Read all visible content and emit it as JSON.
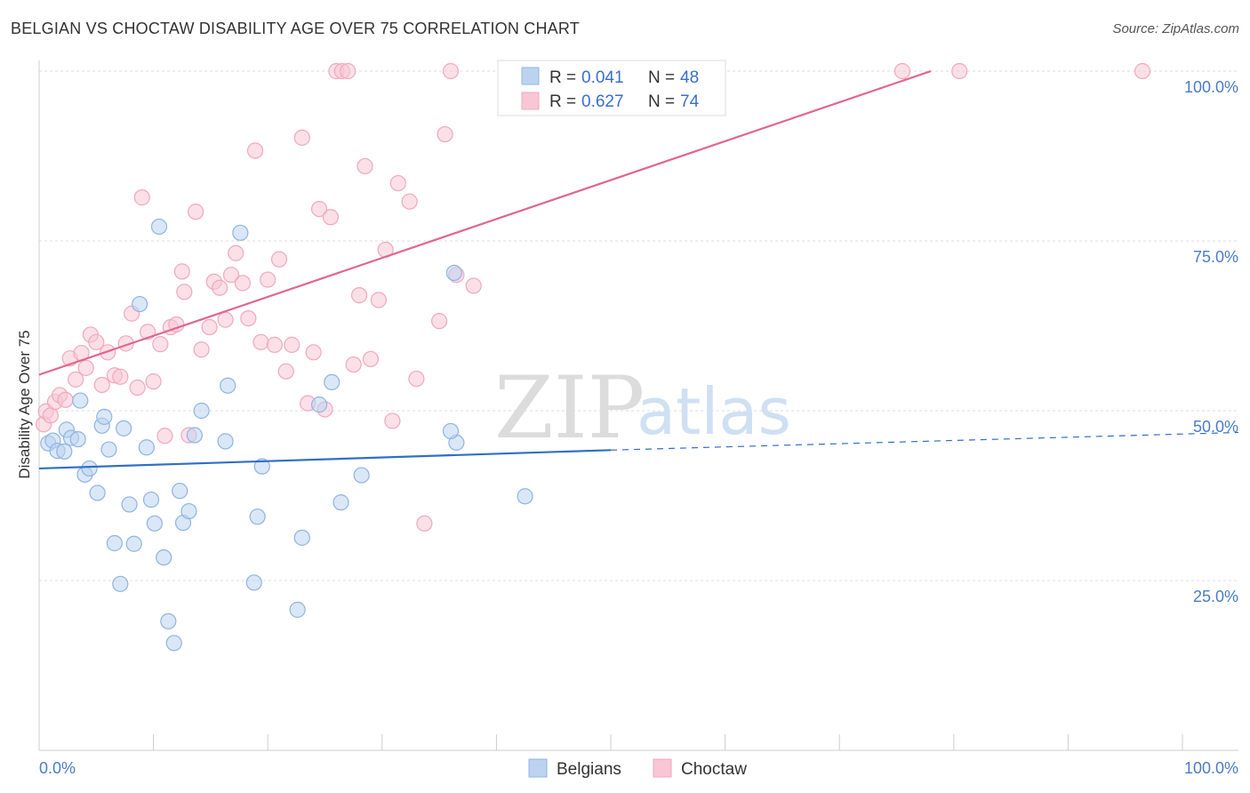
{
  "title": "BELGIAN VS CHOCTAW DISABILITY AGE OVER 75 CORRELATION CHART",
  "source": "Source: ZipAtlas.com",
  "watermark": {
    "zip": "ZIP",
    "atlas": "atlas"
  },
  "chart_data": {
    "type": "scatter",
    "title": "BELGIAN VS CHOCTAW DISABILITY AGE OVER 75 CORRELATION CHART",
    "xlabel": "",
    "ylabel": "Disability Age Over 75",
    "xlim": [
      0,
      100
    ],
    "ylim": [
      0,
      100
    ],
    "x_tick_labels": {
      "left": "0.0%",
      "right": "100.0%"
    },
    "y_ticks": [
      25,
      50,
      75,
      100
    ],
    "y_tick_labels": [
      "25.0%",
      "50.0%",
      "75.0%",
      "100.0%"
    ],
    "grid": true,
    "legend_position": "top-center",
    "colors": {
      "belgians": "#8fb4e3",
      "belgians_line": "#2f6fc8",
      "choctaw": "#f2a7bf",
      "choctaw_line": "#e0668f"
    },
    "stats": [
      {
        "r_label": "R =",
        "r_value": "0.041",
        "n_label": "N =",
        "n_value": "48"
      },
      {
        "r_label": "R =",
        "r_value": "0.627",
        "n_label": "N =",
        "n_value": "74"
      }
    ],
    "series": [
      {
        "name": "Belgians",
        "trend": {
          "x0": 0,
          "y0": 41.5,
          "x1": 50,
          "y1": 44.2,
          "dash_to_x": 100,
          "dash_to_y": 46.8
        },
        "points": [
          [
            0.8,
            45.2
          ],
          [
            1.2,
            45.6
          ],
          [
            1.6,
            44.1
          ],
          [
            2.2,
            44.0
          ],
          [
            2.4,
            47.2
          ],
          [
            2.8,
            46.0
          ],
          [
            3.4,
            45.8
          ],
          [
            3.6,
            51.5
          ],
          [
            4.0,
            40.6
          ],
          [
            4.4,
            41.5
          ],
          [
            5.1,
            37.9
          ],
          [
            5.5,
            47.8
          ],
          [
            5.7,
            49.1
          ],
          [
            6.1,
            44.3
          ],
          [
            6.6,
            30.5
          ],
          [
            7.1,
            24.5
          ],
          [
            7.4,
            47.4
          ],
          [
            7.9,
            36.2
          ],
          [
            8.3,
            30.4
          ],
          [
            8.8,
            65.7
          ],
          [
            9.4,
            44.6
          ],
          [
            9.8,
            36.9
          ],
          [
            10.1,
            33.4
          ],
          [
            10.5,
            77.1
          ],
          [
            10.9,
            28.4
          ],
          [
            11.3,
            19.0
          ],
          [
            11.8,
            15.8
          ],
          [
            12.3,
            38.2
          ],
          [
            12.6,
            33.5
          ],
          [
            13.1,
            35.2
          ],
          [
            13.6,
            46.4
          ],
          [
            14.2,
            50.0
          ],
          [
            16.5,
            53.7
          ],
          [
            16.3,
            45.5
          ],
          [
            17.6,
            76.2
          ],
          [
            18.8,
            24.7
          ],
          [
            19.1,
            34.4
          ],
          [
            19.5,
            41.8
          ],
          [
            22.6,
            20.7
          ],
          [
            23.0,
            31.3
          ],
          [
            24.5,
            50.9
          ],
          [
            25.6,
            54.2
          ],
          [
            26.4,
            36.5
          ],
          [
            28.2,
            40.5
          ],
          [
            36.5,
            45.3
          ],
          [
            36.0,
            47.0
          ],
          [
            36.3,
            70.3
          ],
          [
            42.5,
            37.4
          ]
        ]
      },
      {
        "name": "Choctaw",
        "trend": {
          "x0": 0,
          "y0": 55.3,
          "x1": 78,
          "y1": 100
        },
        "points": [
          [
            0.4,
            48.0
          ],
          [
            0.6,
            49.9
          ],
          [
            1.0,
            49.3
          ],
          [
            1.4,
            51.3
          ],
          [
            1.8,
            52.3
          ],
          [
            2.3,
            51.6
          ],
          [
            2.7,
            57.7
          ],
          [
            3.2,
            54.6
          ],
          [
            3.7,
            58.5
          ],
          [
            4.1,
            56.3
          ],
          [
            4.5,
            61.2
          ],
          [
            5.0,
            60.1
          ],
          [
            5.5,
            53.8
          ],
          [
            6.0,
            58.6
          ],
          [
            6.6,
            55.2
          ],
          [
            7.1,
            55.0
          ],
          [
            7.6,
            59.9
          ],
          [
            8.1,
            64.3
          ],
          [
            8.6,
            53.4
          ],
          [
            9.0,
            81.4
          ],
          [
            9.5,
            61.6
          ],
          [
            10.0,
            54.3
          ],
          [
            10.6,
            59.8
          ],
          [
            11.0,
            46.3
          ],
          [
            11.5,
            62.3
          ],
          [
            12.0,
            62.7
          ],
          [
            12.5,
            70.5
          ],
          [
            12.7,
            67.5
          ],
          [
            13.1,
            46.4
          ],
          [
            13.7,
            79.3
          ],
          [
            14.2,
            59.0
          ],
          [
            14.9,
            62.3
          ],
          [
            15.3,
            69.0
          ],
          [
            15.8,
            68.1
          ],
          [
            16.3,
            63.4
          ],
          [
            16.8,
            70.0
          ],
          [
            17.2,
            73.2
          ],
          [
            17.8,
            68.8
          ],
          [
            18.3,
            63.6
          ],
          [
            18.9,
            88.3
          ],
          [
            19.4,
            60.1
          ],
          [
            20.0,
            69.3
          ],
          [
            20.6,
            59.7
          ],
          [
            21.0,
            72.3
          ],
          [
            21.6,
            55.8
          ],
          [
            22.1,
            59.7
          ],
          [
            23.0,
            90.2
          ],
          [
            23.5,
            51.1
          ],
          [
            24.0,
            58.6
          ],
          [
            24.5,
            79.7
          ],
          [
            25.0,
            50.2
          ],
          [
            25.5,
            78.5
          ],
          [
            26.0,
            100.0
          ],
          [
            26.5,
            100.0
          ],
          [
            27.0,
            100.0
          ],
          [
            27.5,
            56.8
          ],
          [
            28.0,
            67.0
          ],
          [
            28.5,
            86.0
          ],
          [
            29.0,
            57.6
          ],
          [
            29.7,
            66.3
          ],
          [
            30.3,
            73.7
          ],
          [
            30.9,
            48.5
          ],
          [
            31.4,
            83.5
          ],
          [
            32.4,
            80.8
          ],
          [
            33.0,
            54.7
          ],
          [
            33.7,
            33.4
          ],
          [
            35.0,
            63.2
          ],
          [
            35.5,
            90.7
          ],
          [
            36.0,
            100.0
          ],
          [
            36.5,
            70.0
          ],
          [
            38.0,
            68.4
          ],
          [
            75.5,
            100.0
          ],
          [
            80.5,
            100.0
          ],
          [
            96.5,
            100.0
          ]
        ]
      }
    ]
  }
}
